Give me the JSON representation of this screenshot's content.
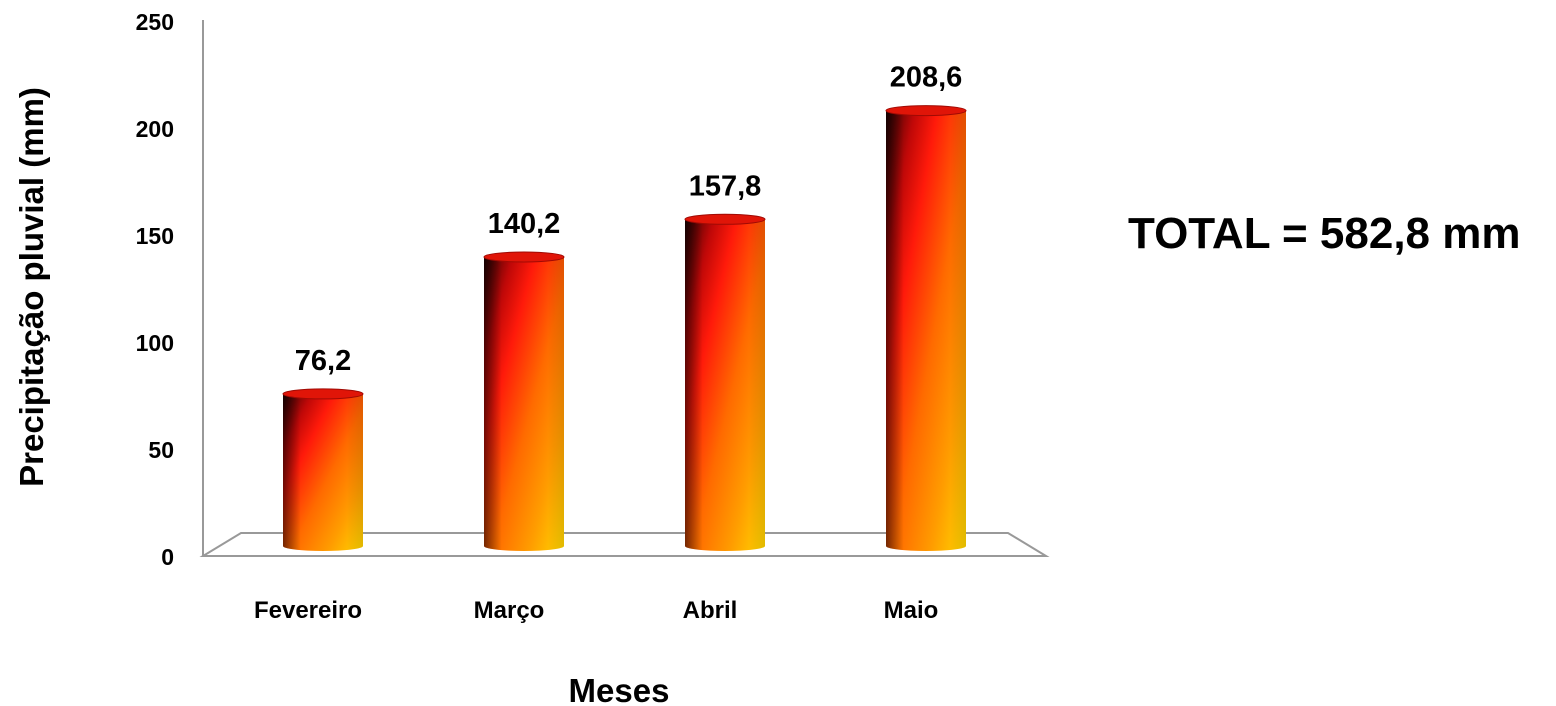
{
  "chart_data": {
    "type": "bar",
    "categories": [
      "Fevereiro",
      "Março",
      "Abril",
      "Maio"
    ],
    "values": [
      76.2,
      140.2,
      157.8,
      208.6
    ],
    "data_labels": [
      "76,2",
      "140,2",
      "157,8",
      "208,6"
    ],
    "title": "",
    "xlabel": "Meses",
    "ylabel": "Precipitação pluvial (mm)",
    "ylim": [
      0,
      250
    ],
    "yticks": [
      "0",
      "50",
      "100",
      "150",
      "200",
      "250"
    ],
    "grid": false,
    "style": "3d-cylinder",
    "colors": {
      "dark": "#3a0505",
      "red": "#ff1a0a",
      "orange": "#ff8a00",
      "yellow": "#ffd400",
      "axis": "#999999"
    },
    "annotation": "TOTAL = 582,8 mm"
  }
}
